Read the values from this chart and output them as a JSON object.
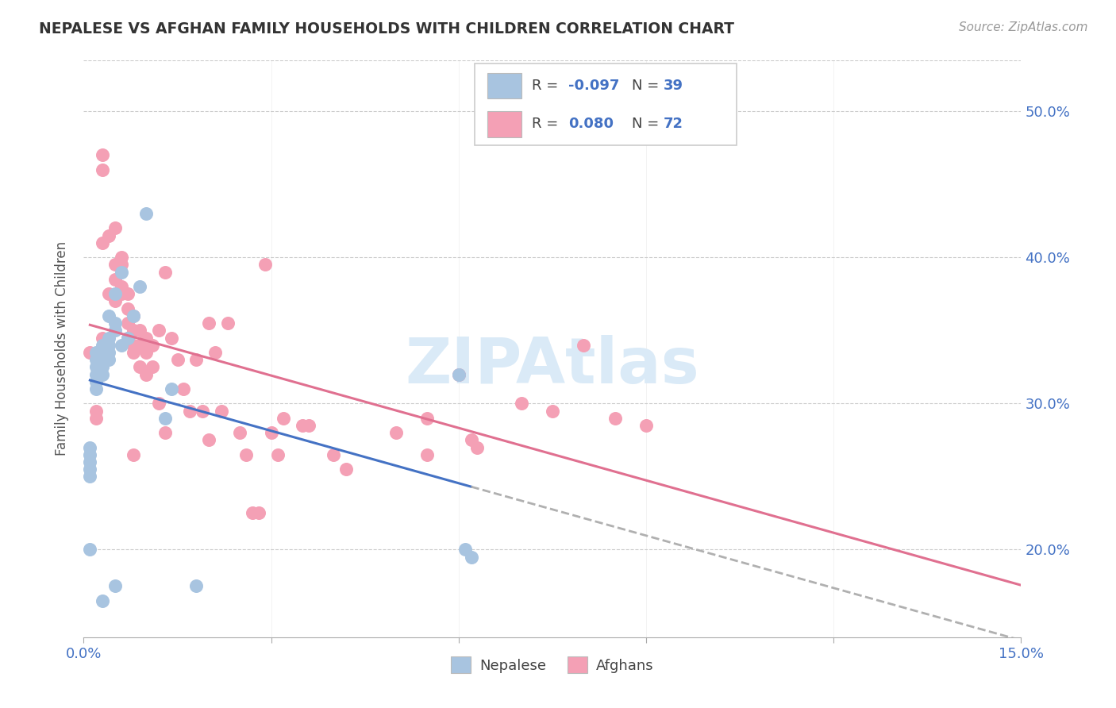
{
  "title": "NEPALESE VS AFGHAN FAMILY HOUSEHOLDS WITH CHILDREN CORRELATION CHART",
  "source": "Source: ZipAtlas.com",
  "ylabel": "Family Households with Children",
  "xlim": [
    0.0,
    0.15
  ],
  "ylim": [
    0.14,
    0.535
  ],
  "y_ticks": [
    0.2,
    0.3,
    0.4,
    0.5
  ],
  "y_tick_labels": [
    "20.0%",
    "30.0%",
    "40.0%",
    "50.0%"
  ],
  "nepalese_R": "-0.097",
  "nepalese_N": "39",
  "afghan_R": "0.080",
  "afghan_N": "72",
  "nepalese_color": "#a8c4e0",
  "afghan_color": "#f4a0b5",
  "nepalese_line_color": "#4472c4",
  "afghan_line_color": "#e07090",
  "dashed_line_color": "#b0b0b0",
  "watermark": "ZIPAtlas",
  "watermark_color": "#daeaf7",
  "nepalese_x": [
    0.001,
    0.001,
    0.001,
    0.001,
    0.001,
    0.002,
    0.002,
    0.002,
    0.002,
    0.002,
    0.002,
    0.003,
    0.003,
    0.003,
    0.003,
    0.003,
    0.004,
    0.004,
    0.004,
    0.004,
    0.004,
    0.005,
    0.005,
    0.005,
    0.006,
    0.006,
    0.007,
    0.008,
    0.009,
    0.01,
    0.013,
    0.014,
    0.018,
    0.06,
    0.061,
    0.062,
    0.001,
    0.003,
    0.005
  ],
  "nepalese_y": [
    0.27,
    0.265,
    0.26,
    0.255,
    0.25,
    0.335,
    0.33,
    0.325,
    0.32,
    0.315,
    0.31,
    0.34,
    0.335,
    0.33,
    0.325,
    0.32,
    0.345,
    0.34,
    0.335,
    0.33,
    0.36,
    0.355,
    0.35,
    0.375,
    0.39,
    0.34,
    0.345,
    0.36,
    0.38,
    0.43,
    0.29,
    0.31,
    0.175,
    0.32,
    0.2,
    0.195,
    0.2,
    0.165,
    0.175
  ],
  "afghan_x": [
    0.001,
    0.002,
    0.002,
    0.003,
    0.003,
    0.003,
    0.004,
    0.004,
    0.005,
    0.005,
    0.005,
    0.005,
    0.006,
    0.006,
    0.006,
    0.006,
    0.007,
    0.007,
    0.007,
    0.007,
    0.008,
    0.008,
    0.008,
    0.008,
    0.009,
    0.009,
    0.009,
    0.01,
    0.01,
    0.01,
    0.011,
    0.011,
    0.012,
    0.012,
    0.013,
    0.013,
    0.014,
    0.015,
    0.016,
    0.017,
    0.018,
    0.019,
    0.02,
    0.021,
    0.022,
    0.023,
    0.025,
    0.026,
    0.027,
    0.028,
    0.029,
    0.03,
    0.031,
    0.032,
    0.035,
    0.036,
    0.04,
    0.042,
    0.05,
    0.055,
    0.06,
    0.062,
    0.063,
    0.07,
    0.075,
    0.08,
    0.085,
    0.09,
    0.003,
    0.008,
    0.02,
    0.055
  ],
  "afghan_y": [
    0.335,
    0.295,
    0.29,
    0.47,
    0.46,
    0.41,
    0.415,
    0.375,
    0.42,
    0.395,
    0.385,
    0.37,
    0.4,
    0.395,
    0.38,
    0.375,
    0.375,
    0.365,
    0.355,
    0.345,
    0.36,
    0.35,
    0.34,
    0.335,
    0.35,
    0.34,
    0.325,
    0.345,
    0.335,
    0.32,
    0.34,
    0.325,
    0.35,
    0.3,
    0.39,
    0.28,
    0.345,
    0.33,
    0.31,
    0.295,
    0.33,
    0.295,
    0.355,
    0.335,
    0.295,
    0.355,
    0.28,
    0.265,
    0.225,
    0.225,
    0.395,
    0.28,
    0.265,
    0.29,
    0.285,
    0.285,
    0.265,
    0.255,
    0.28,
    0.265,
    0.32,
    0.275,
    0.27,
    0.3,
    0.295,
    0.34,
    0.29,
    0.285,
    0.345,
    0.265,
    0.275,
    0.29
  ]
}
